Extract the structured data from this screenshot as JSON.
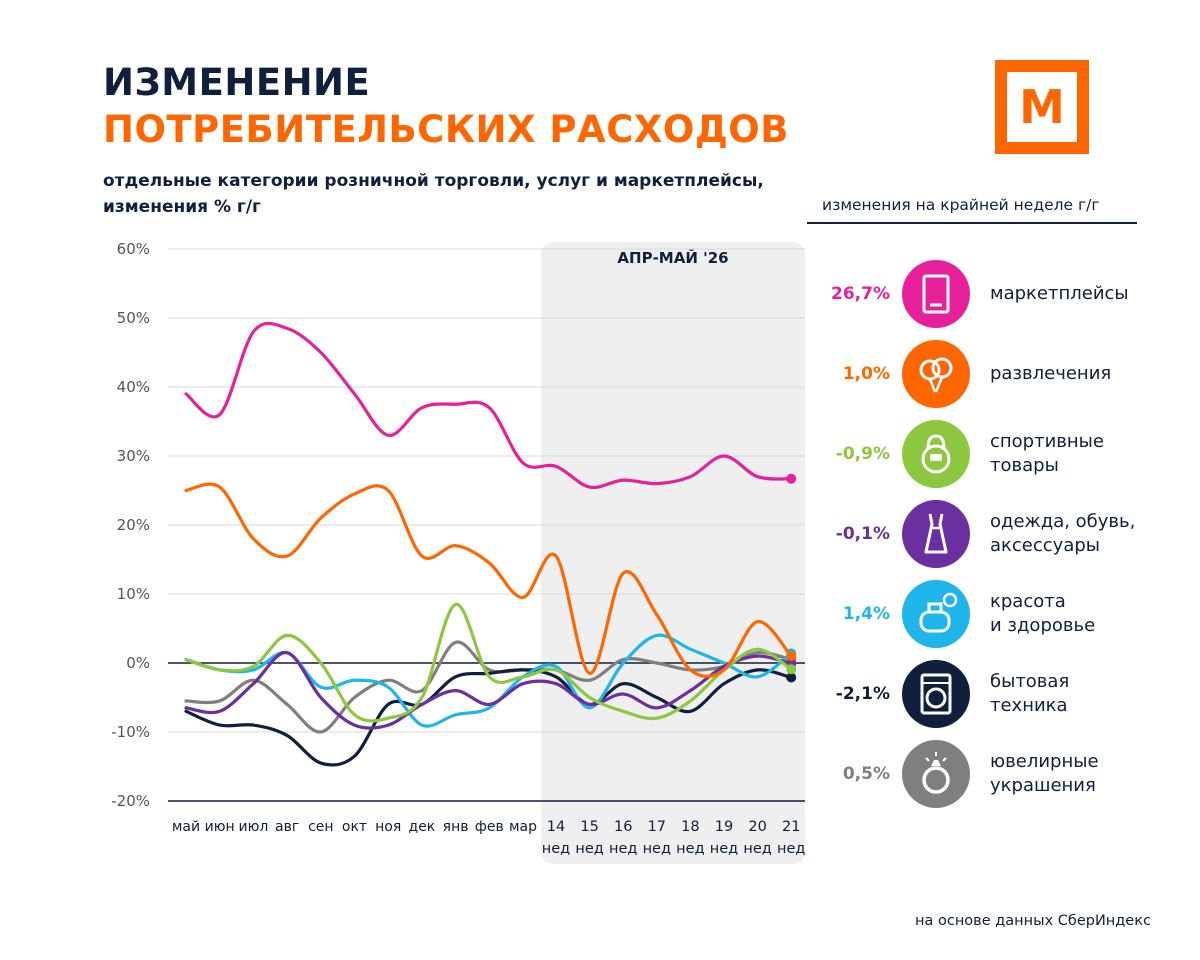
{
  "header": {
    "title_line1": "ИЗМЕНЕНИЕ",
    "title_line2": "ПОТРЕБИТЕЛЬСКИХ РАСХОДОВ",
    "subtitle_line1": "отдельные категории розничной торговли, услуг  и маркетплейсы,",
    "subtitle_line2": "изменения % г/г",
    "logo_letter": "М"
  },
  "legend_header": "изменения на крайней неделе г/г",
  "source": "на основе данных СберИндекс",
  "chart_data": {
    "type": "line",
    "highlight_label": "АПР-МАЙ '26",
    "y_ticks": [
      "60%",
      "50%",
      "40%",
      "30%",
      "20%",
      "10%",
      "0%",
      "-10%",
      "-20%"
    ],
    "ylim": [
      -20,
      60
    ],
    "month_labels": [
      "май",
      "июн",
      "июл",
      "авг",
      "сен",
      "окт",
      "ноя",
      "дек",
      "янв",
      "фев",
      "мар"
    ],
    "week_labels": [
      "14",
      "15",
      "16",
      "17",
      "18",
      "19",
      "20",
      "21"
    ],
    "week_sublabel": "нед",
    "series": [
      {
        "name": "маркетплейсы",
        "color": "#e6209a",
        "last_label": "26,7%",
        "icon": "tablet-icon",
        "values": [
          39,
          36,
          48,
          48.5,
          45,
          39,
          33,
          37,
          37.5,
          37,
          29,
          28.5,
          25.5,
          26.5,
          26,
          27,
          30,
          27,
          26.7
        ]
      },
      {
        "name": "развлечения",
        "color": "#ff6600",
        "last_label": "1,0%",
        "icon": "balloons-icon",
        "values": [
          25,
          25.5,
          18,
          15.5,
          21,
          24.5,
          25,
          15.5,
          17,
          14.5,
          9.5,
          15.5,
          -1.5,
          13,
          7,
          -1,
          -1,
          6,
          1.0
        ]
      },
      {
        "name": "спортивные товары",
        "color": "#8dc63f",
        "last_label": "-0,9%",
        "icon": "kettlebell-icon",
        "values": [
          0.5,
          -1,
          -0.5,
          4,
          0,
          -7.5,
          -8,
          -5,
          8.5,
          -2,
          -2,
          -1,
          -5,
          -7,
          -8,
          -5.5,
          -1,
          2,
          -0.9
        ]
      },
      {
        "name": "одежда, обувь, аксессуары",
        "color": "#6b2fa0",
        "last_label": "-0,1%",
        "icon": "dress-icon",
        "values": [
          -6.5,
          -7,
          -3,
          1.5,
          -5,
          -9,
          -9,
          -6,
          -4,
          -6,
          -3,
          -3,
          -6,
          -4.5,
          -6.5,
          -4,
          -0.5,
          1,
          -0.1
        ]
      },
      {
        "name": "красота и здоровье",
        "color": "#1fb5ea",
        "last_label": "1,4%",
        "icon": "perfume-icon",
        "values": [
          0.5,
          -1,
          -1,
          1.5,
          -3.5,
          -2.5,
          -3.5,
          -9,
          -7.5,
          -6.5,
          -2,
          -0.5,
          -6.5,
          0,
          4,
          2,
          0,
          -2,
          1.4
        ]
      },
      {
        "name": "бытовая техника",
        "color": "#0f1f3d",
        "last_label": "-2,1%",
        "icon": "washer-icon",
        "values": [
          -7,
          -9,
          -9,
          -10.5,
          -14.5,
          -13.5,
          -6,
          -6,
          -2,
          -1.5,
          -1,
          -2,
          -6,
          -3,
          -5,
          -7,
          -3,
          -1,
          -2.1
        ]
      },
      {
        "name": "ювелирные украшения",
        "color": "#7f7f7f",
        "last_label": "0,5%",
        "icon": "ring-icon",
        "values": [
          -5.5,
          -5.5,
          -2.5,
          -6,
          -10,
          -5,
          -2.5,
          -4,
          3,
          -1,
          -1,
          -1,
          -2.5,
          0.5,
          0,
          -1,
          -0.5,
          1.5,
          0.5
        ]
      }
    ]
  },
  "legend": [
    {
      "value": "26,7%",
      "color": "#e6209a",
      "line1": "маркетплейсы",
      "line2": ""
    },
    {
      "value": "1,0%",
      "color": "#ff6600",
      "line1": "развлечения",
      "line2": ""
    },
    {
      "value": "-0,9%",
      "color": "#8dc63f",
      "line1": "спортивные",
      "line2": "товары"
    },
    {
      "value": "-0,1%",
      "color": "#6b2fa0",
      "line1": "одежда, обувь,",
      "line2": "аксессуары"
    },
    {
      "value": "1,4%",
      "color": "#1fb5ea",
      "line1": "красота",
      "line2": "и здоровье"
    },
    {
      "value": "-2,1%",
      "color": "#0f1f3d",
      "line1": "бытовая",
      "line2": "техника"
    },
    {
      "value": "0,5%",
      "color": "#7f7f7f",
      "line1": "ювелирные",
      "line2": "украшения"
    }
  ]
}
